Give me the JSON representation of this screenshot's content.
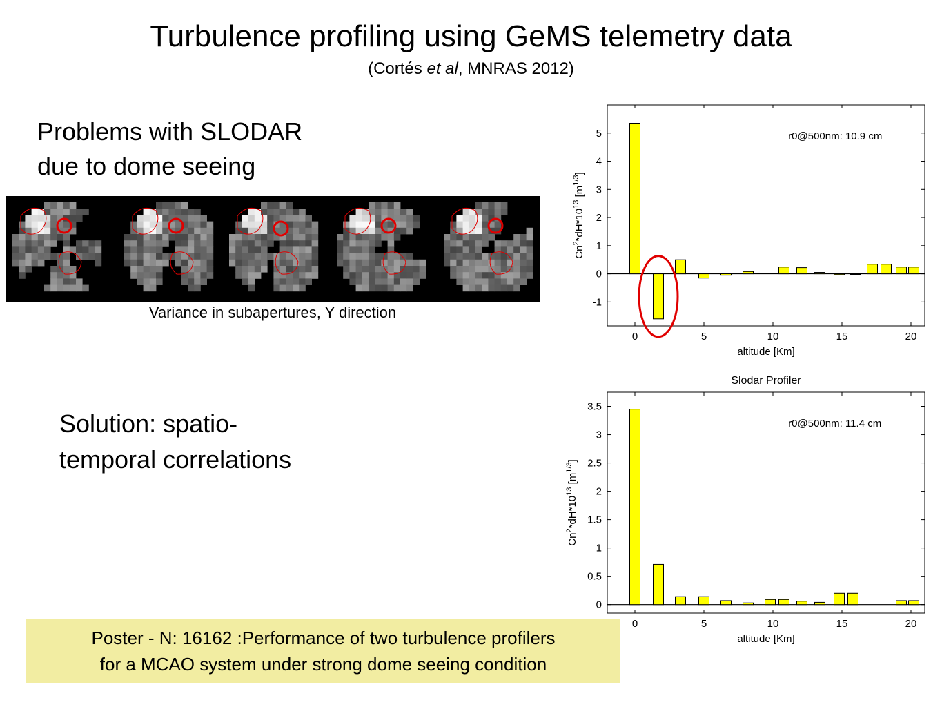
{
  "title": "Turbulence profiling using GeMS telemetry data",
  "subtitle": {
    "pre": "(Cortés ",
    "italic": "et al",
    "post": ", MNRAS 2012)"
  },
  "problem": {
    "line1": "Problems with SLODAR",
    "line2": "due to dome seeing"
  },
  "solution": {
    "line1": "Solution: spatio-",
    "line2": "temporal correlations"
  },
  "image_caption": "Variance in subapertures, Y direction",
  "poster": {
    "line1": "Poster - N: 16162 :Performance of two turbulence profilers",
    "line2": "for a MCAO system under strong dome seeing condition"
  },
  "colors": {
    "bar": "#ffff00",
    "highlight": "#e00000",
    "poster_bg": "#f2eda2"
  },
  "chart_data": [
    {
      "type": "bar",
      "title": "",
      "annotation": "r0@500nm: 10.9 cm",
      "xlabel": "altitude [Km]",
      "ylabel_base": "Cn",
      "ylabel_mid": "*dH*10",
      "ylabel_unit": "[m",
      "ylabel_close": "]",
      "ylabel_exp1": "2",
      "ylabel_exp2": "13",
      "ylabel_exp3": "1/3",
      "xlim": [
        -2,
        21
      ],
      "ylim": [
        -1.85,
        6.0
      ],
      "xticks": [
        0,
        5,
        10,
        15,
        20
      ],
      "yticks": [
        -1,
        0,
        1,
        2,
        3,
        4,
        5
      ],
      "x": [
        0,
        1.7,
        3.3,
        5.0,
        6.6,
        8.2,
        10.8,
        12.1,
        13.4,
        14.8,
        16.0,
        17.2,
        18.2,
        19.3,
        20.2
      ],
      "values": [
        5.35,
        -1.6,
        0.5,
        -0.15,
        -0.05,
        0.08,
        0.24,
        0.22,
        0.05,
        -0.03,
        -0.02,
        0.34,
        0.34,
        0.24,
        0.24
      ],
      "highlight_index": 1
    },
    {
      "type": "bar",
      "title": "Slodar Profiler",
      "annotation": "r0@500nm: 11.4 cm",
      "xlabel": "altitude [Km]",
      "ylabel_base": "Cn",
      "ylabel_mid": "*dH*10",
      "ylabel_unit": "[m",
      "ylabel_close": "]",
      "ylabel_exp1": "2",
      "ylabel_exp2": "13",
      "ylabel_exp3": "1/3",
      "xlim": [
        -2,
        21
      ],
      "ylim": [
        -0.15,
        3.75
      ],
      "xticks": [
        0,
        5,
        10,
        15,
        20
      ],
      "yticks": [
        0,
        0.5,
        1,
        1.5,
        2,
        2.5,
        3,
        3.5
      ],
      "x": [
        0,
        1.7,
        3.3,
        5.0,
        6.6,
        8.2,
        9.8,
        10.8,
        12.1,
        13.4,
        14.8,
        15.8,
        19.3,
        20.2
      ],
      "values": [
        3.45,
        0.71,
        0.14,
        0.14,
        0.07,
        0.03,
        0.09,
        0.09,
        0.06,
        0.04,
        0.2,
        0.2,
        0.07,
        0.07
      ]
    }
  ]
}
